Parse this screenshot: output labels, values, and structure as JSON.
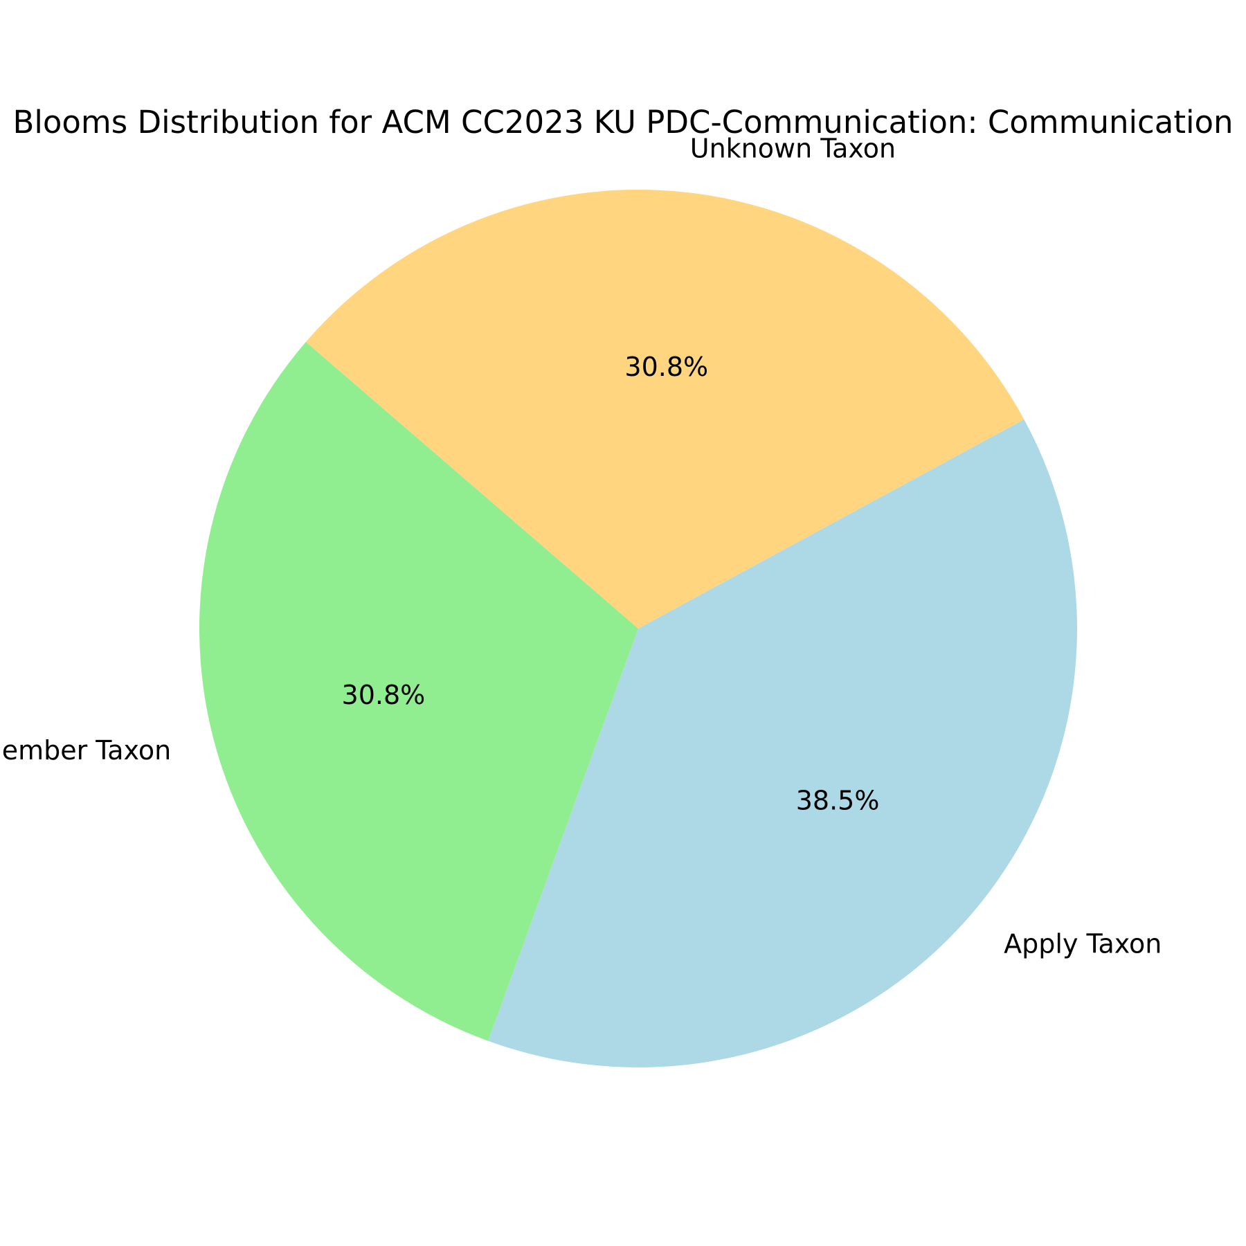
{
  "chart_data": {
    "type": "pie",
    "title": "Blooms Distribution for ACM CC2023 KU PDC-Communication: Communication",
    "labels": [
      "Apply Taxon",
      "Unknown Taxon",
      "Remember Taxon"
    ],
    "values": [
      38.5,
      30.8,
      30.8
    ],
    "percent_labels": [
      "38.5%",
      "30.8%",
      "30.8%"
    ],
    "colors": [
      "#add8e6",
      "#ffd580",
      "#90ee90"
    ],
    "start_angle_deg": -110,
    "direction": "counterclockwise"
  }
}
